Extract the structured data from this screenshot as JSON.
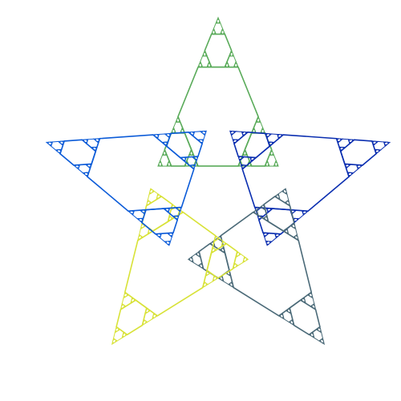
{
  "figure": {
    "kind": "fractal-star",
    "points": 5,
    "recursion_depth": 4,
    "background": "#ffffff",
    "arms": [
      {
        "name": "top",
        "color": "#5aab5a"
      },
      {
        "name": "right",
        "color": "#0a2eb0"
      },
      {
        "name": "bottom",
        "color": "#4b6a78"
      },
      {
        "name": "left",
        "color": "#d8e238"
      },
      {
        "name": "upper-left",
        "color": "#0b5bd8"
      }
    ]
  }
}
